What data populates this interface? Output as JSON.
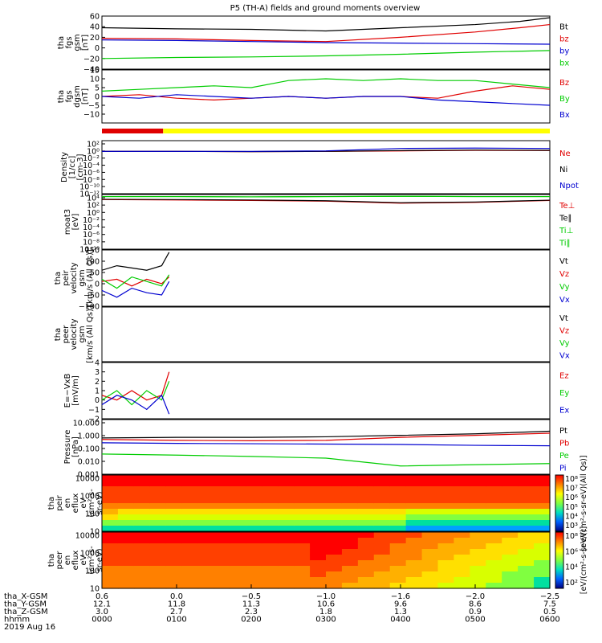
{
  "title": "P5 (TH-A) fields and ground moments overview",
  "colors": {
    "black": "#000000",
    "red": "#e00000",
    "green": "#00cc00",
    "blue": "#0000d0",
    "yellow": "#ffff00"
  },
  "status_bar": {
    "red_to_hour": 0.82
  },
  "chart_data": [
    {
      "type": "line",
      "ylabel_lines": [
        "tha",
        "fgs",
        "gsm",
        "[nT]"
      ],
      "ylim": [
        -40,
        60
      ],
      "yticks": [
        "60",
        "40",
        "20",
        "0",
        "−20",
        "−40"
      ],
      "ytick_values": [
        60,
        40,
        20,
        0,
        -20,
        -40
      ],
      "series": [
        {
          "name": "Bt",
          "color": "black",
          "x": [
            0,
            1,
            2,
            3,
            4,
            5,
            5.6,
            6
          ],
          "values": [
            38,
            36,
            35,
            32,
            38,
            44,
            50,
            57
          ]
        },
        {
          "name": "bz",
          "color": "red",
          "x": [
            0,
            1,
            2,
            3,
            4,
            5,
            5.6,
            6
          ],
          "values": [
            18,
            17,
            14,
            12,
            20,
            30,
            38,
            44
          ]
        },
        {
          "name": "by",
          "color": "blue",
          "x": [
            0,
            1,
            2,
            3,
            4,
            5,
            6
          ],
          "values": [
            15,
            14,
            12,
            10,
            9,
            8,
            7
          ]
        },
        {
          "name": "bx",
          "color": "green",
          "x": [
            0,
            1,
            2,
            3,
            4,
            5,
            6
          ],
          "values": [
            -20,
            -18,
            -17,
            -15,
            -12,
            -8,
            -5
          ]
        }
      ],
      "legend": [
        "Bt",
        "bz",
        "by",
        "bx"
      ]
    },
    {
      "type": "line",
      "ylabel_lines": [
        "tha",
        "fgs",
        "dgsm",
        "[nT]"
      ],
      "ylim": [
        -15,
        15
      ],
      "yticks": [
        "15",
        "10",
        "5",
        "0",
        "−5",
        "−10"
      ],
      "ytick_values": [
        15,
        10,
        5,
        0,
        -5,
        -10
      ],
      "series": [
        {
          "name": "Bz",
          "color": "red",
          "x": [
            0,
            0.5,
            1,
            1.5,
            2,
            2.5,
            3,
            3.5,
            4,
            4.5,
            5,
            5.5,
            6
          ],
          "values": [
            0,
            1,
            -1,
            -2,
            -1,
            0,
            -1,
            0,
            0,
            -1,
            3,
            6,
            4
          ]
        },
        {
          "name": "By",
          "color": "green",
          "x": [
            0,
            0.5,
            1,
            1.5,
            2,
            2.5,
            3,
            3.5,
            4,
            4.5,
            5,
            5.5,
            6
          ],
          "values": [
            3,
            4,
            5,
            6,
            5,
            9,
            10,
            9,
            10,
            9,
            9,
            7,
            5
          ]
        },
        {
          "name": "Bx",
          "color": "blue",
          "x": [
            0,
            0.5,
            1,
            1.5,
            2,
            2.5,
            3,
            3.5,
            4,
            4.5,
            5,
            5.5,
            6
          ],
          "values": [
            0,
            -1,
            1,
            0,
            -1,
            0,
            -1,
            0,
            0,
            -2,
            -3,
            -4,
            -5
          ]
        }
      ],
      "legend": [
        "Bz",
        "By",
        "Bx"
      ]
    },
    {
      "type": "line",
      "ylabel_lines": [
        "Density",
        "[1/cc]",
        "[cm-3]"
      ],
      "yticks": [
        "10²",
        "10⁰",
        "10⁻²",
        "10⁻⁴",
        "10⁻⁶",
        "10⁻⁸",
        "10⁻¹⁰",
        "10⁻¹²"
      ],
      "ylim_log": [
        -12.5,
        2.5
      ],
      "series": [
        {
          "name": "Ne",
          "color": "red",
          "x": [
            0,
            1,
            2,
            3,
            4,
            5,
            6
          ],
          "values": [
            0.3,
            0.3,
            0.25,
            0.3,
            0.4,
            0.6,
            0.5
          ]
        },
        {
          "name": "Ni",
          "color": "black",
          "x": [
            0,
            1,
            2,
            3,
            4,
            5,
            6
          ],
          "values": [
            0.3,
            0.3,
            0.25,
            0.3,
            0.5,
            0.7,
            0.6
          ]
        },
        {
          "name": "Npot",
          "color": "blue",
          "x": [
            0,
            1,
            2,
            3,
            4,
            5,
            6
          ],
          "values": [
            0.3,
            0.3,
            0.3,
            0.4,
            2,
            2.5,
            2
          ]
        }
      ],
      "legend": [
        "Ne",
        "Ni",
        "Npot"
      ]
    },
    {
      "type": "line",
      "ylabel_lines": [
        "moat3",
        "[eV]"
      ],
      "yticks": [
        "10⁴",
        "10²",
        "10⁰",
        "10⁻²",
        "10⁻⁴",
        "10⁻⁶",
        "10⁻⁸",
        "10⁻¹⁰"
      ],
      "ylim_log": [
        -10,
        4
      ],
      "series": [
        {
          "name": "Te⊥",
          "color": "red",
          "x": [
            0,
            1,
            2,
            3,
            4,
            5,
            6
          ],
          "values": [
            500,
            400,
            300,
            200,
            60,
            100,
            300
          ]
        },
        {
          "name": "Te∥",
          "color": "black",
          "x": [
            0,
            1,
            2,
            3,
            4,
            5,
            6
          ],
          "values": [
            600,
            500,
            400,
            250,
            80,
            120,
            350
          ]
        },
        {
          "name": "Ti⊥",
          "color": "green",
          "x": [
            0,
            1,
            2,
            3,
            4,
            5,
            6
          ],
          "values": [
            3000,
            3000,
            2500,
            3000,
            3500,
            3000,
            3000
          ]
        },
        {
          "name": "Ti∥",
          "color": "green",
          "x": [
            0,
            1,
            2,
            3,
            4,
            5,
            6
          ],
          "values": [
            3000,
            3000,
            2500,
            3000,
            3500,
            3000,
            3000
          ]
        }
      ],
      "legend": [
        "Te⊥",
        "Te∥",
        "Ti⊥",
        "Ti∥"
      ]
    },
    {
      "type": "line",
      "ylabel_lines": [
        "tha",
        "peir",
        "velocity",
        "gsm",
        "[km/s (All Qs)]"
      ],
      "ylim": [
        -100,
        150
      ],
      "yticks": [
        "150",
        "100",
        "50",
        "0",
        "−50",
        "−100"
      ],
      "ytick_values": [
        150,
        100,
        50,
        0,
        -50,
        -100
      ],
      "series": [
        {
          "name": "Vt",
          "color": "black",
          "x": [
            0,
            0.2,
            0.4,
            0.6,
            0.8,
            0.9
          ],
          "values": [
            60,
            80,
            70,
            60,
            80,
            140
          ]
        },
        {
          "name": "Vz",
          "color": "red",
          "x": [
            0,
            0.2,
            0.4,
            0.6,
            0.8,
            0.9
          ],
          "values": [
            10,
            20,
            -10,
            20,
            0,
            30
          ]
        },
        {
          "name": "Vy",
          "color": "green",
          "x": [
            0,
            0.2,
            0.4,
            0.6,
            0.8,
            0.9
          ],
          "values": [
            20,
            -20,
            30,
            10,
            -10,
            40
          ]
        },
        {
          "name": "Vx",
          "color": "blue",
          "x": [
            0,
            0.2,
            0.4,
            0.6,
            0.8,
            0.9
          ],
          "values": [
            -30,
            -60,
            -20,
            -40,
            -50,
            10
          ]
        }
      ],
      "legend": [
        "Vt",
        "Vz",
        "Vy",
        "Vx"
      ]
    },
    {
      "type": "line",
      "ylabel_lines": [
        "tha",
        "peer",
        "velocity",
        "gsm",
        "[km/s (All Qs)]"
      ],
      "series": [],
      "legend": [
        "Vt",
        "Vz",
        "Vy",
        "Vx"
      ]
    },
    {
      "type": "line",
      "ylabel_lines": [
        "E=−VxB",
        "[mV/m]"
      ],
      "ylim": [
        -2,
        4
      ],
      "yticks": [
        "4",
        "3",
        "2",
        "1",
        "0",
        "−1",
        "−2"
      ],
      "ytick_values": [
        4,
        3,
        2,
        1,
        0,
        -1,
        -2
      ],
      "series": [
        {
          "name": "Ez",
          "color": "red",
          "x": [
            0,
            0.2,
            0.4,
            0.6,
            0.8,
            0.9
          ],
          "values": [
            0.5,
            0,
            1,
            0,
            0.5,
            3
          ]
        },
        {
          "name": "Ey",
          "color": "green",
          "x": [
            0,
            0.2,
            0.4,
            0.6,
            0.8,
            0.9
          ],
          "values": [
            0,
            1,
            -0.5,
            1,
            0,
            2
          ]
        },
        {
          "name": "Ex",
          "color": "blue",
          "x": [
            0,
            0.2,
            0.4,
            0.6,
            0.8,
            0.9
          ],
          "values": [
            -0.5,
            0.5,
            0,
            -1,
            0.5,
            -1.5
          ]
        }
      ],
      "legend": [
        "Ez",
        "Ey",
        "Ex"
      ]
    },
    {
      "type": "line",
      "ylabel_lines": [
        "Pressure",
        "[nPa]"
      ],
      "yticks": [
        "10.000",
        "1.000",
        "0.100",
        "0.010",
        "0.001"
      ],
      "ylim_log": [
        -3,
        1
      ],
      "series": [
        {
          "name": "Pt",
          "color": "black",
          "x": [
            0,
            1,
            2,
            3,
            4,
            5,
            6
          ],
          "values": [
            0.45,
            0.5,
            0.5,
            0.55,
            0.7,
            0.9,
            1.4
          ]
        },
        {
          "name": "Pb",
          "color": "red",
          "x": [
            0,
            1,
            2,
            3,
            4,
            5,
            6
          ],
          "values": [
            0.35,
            0.3,
            0.28,
            0.3,
            0.5,
            0.7,
            1.0
          ]
        },
        {
          "name": "Pe",
          "color": "green",
          "x": [
            0,
            1,
            2,
            3,
            4,
            5,
            6
          ],
          "values": [
            0.03,
            0.025,
            0.02,
            0.015,
            0.004,
            0.005,
            0.006
          ]
        },
        {
          "name": "Pi",
          "color": "blue",
          "x": [
            0,
            1,
            2,
            3,
            4,
            5,
            6
          ],
          "values": [
            0.2,
            0.18,
            0.17,
            0.16,
            0.15,
            0.13,
            0.12
          ]
        }
      ],
      "legend": [
        "Pt",
        "Pb",
        "Pe",
        "Pi"
      ]
    },
    {
      "type": "heatmap",
      "ylabel_lines": [
        "tha",
        "peir",
        "en",
        "eflux",
        "eV",
        "(cm²-s-",
        "sr-eV)"
      ],
      "yticks": [
        "10000",
        "1000",
        "100",
        "10"
      ],
      "colorbar_ticks": [
        "10⁸",
        "10⁷",
        "10⁶",
        "10⁵",
        "10⁴",
        "10³"
      ],
      "colorbar_label": "[eV/(cm²-s-sr-eV)(All Qs)]"
    },
    {
      "type": "heatmap",
      "ylabel_lines": [
        "tha",
        "peer",
        "en",
        "eflux",
        "eV",
        "(cm²-s-",
        "sr-eV)"
      ],
      "yticks": [
        "10000",
        "1000",
        "100",
        "10"
      ],
      "colorbar_ticks": [
        "10⁸",
        "10⁶",
        "10⁴",
        "10²"
      ],
      "colorbar_label": "[eV/(cm²-s-sr-eV)]"
    }
  ],
  "footer": {
    "row_labels": [
      "tha_X-GSM",
      "tha_Y-GSM",
      "tha_Z-GSM",
      "hhmm",
      "2019 Aug 16"
    ],
    "columns": [
      [
        "0.6",
        "12.1",
        "3.0",
        "0000"
      ],
      [
        "0.0",
        "11.8",
        "2.7",
        "0100"
      ],
      [
        "−0.5",
        "11.3",
        "2.3",
        "0200"
      ],
      [
        "−1.0",
        "10.6",
        "1.8",
        "0300"
      ],
      [
        "−1.6",
        "9.6",
        "1.3",
        "0400"
      ],
      [
        "−2.0",
        "8.6",
        "0.9",
        "0500"
      ],
      [
        "−2.5",
        "7.5",
        "0.5",
        "0600"
      ]
    ]
  }
}
